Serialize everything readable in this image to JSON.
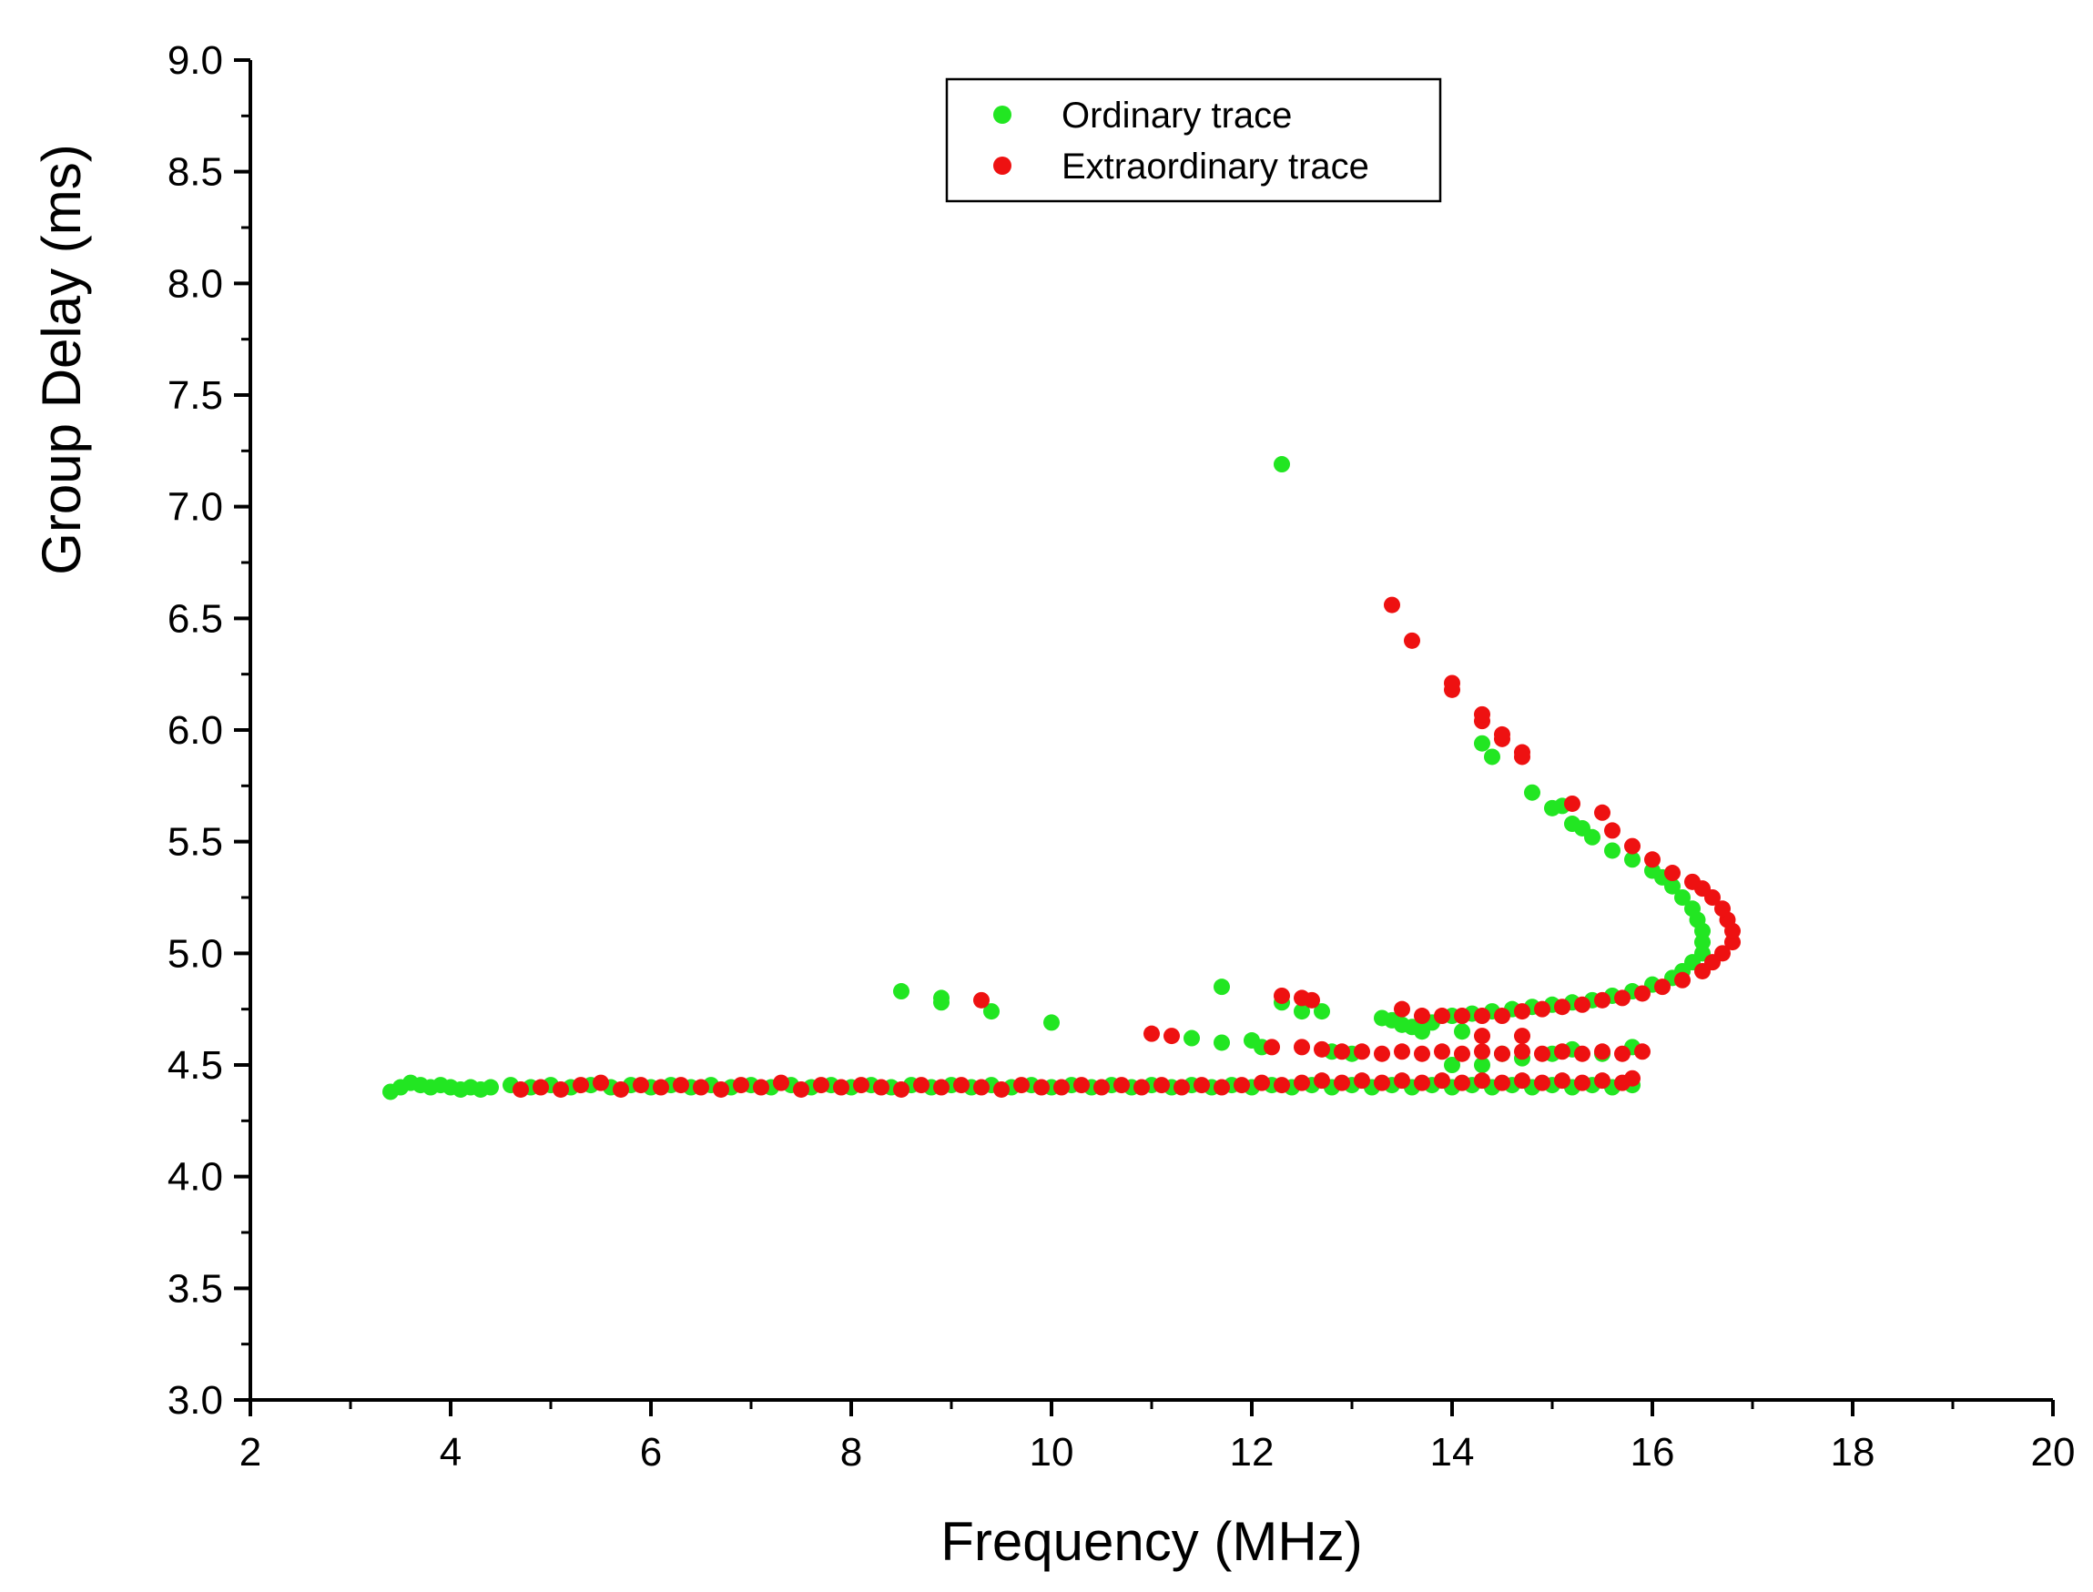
{
  "chart_data": {
    "type": "scatter",
    "title": "",
    "xlabel": "Frequency (MHz)",
    "ylabel": "Group Delay (ms)",
    "xlim": [
      2,
      20
    ],
    "ylim": [
      3.0,
      9.0
    ],
    "x_ticks": [
      2,
      4,
      6,
      8,
      10,
      12,
      14,
      16,
      18,
      20
    ],
    "x_tick_labels": [
      "2",
      "4",
      "6",
      "8",
      "10",
      "12",
      "14",
      "16",
      "18",
      "20"
    ],
    "y_ticks": [
      3.0,
      3.5,
      4.0,
      4.5,
      5.0,
      5.5,
      6.0,
      6.5,
      7.0,
      7.5,
      8.0,
      8.5,
      9.0
    ],
    "y_tick_labels": [
      "3.0",
      "3.5",
      "4.0",
      "4.5",
      "5.0",
      "5.5",
      "6.0",
      "6.5",
      "7.0",
      "7.5",
      "8.0",
      "8.5",
      "9.0"
    ],
    "grid": false,
    "legend_position": "top-center",
    "series": [
      {
        "name": "Ordinary trace",
        "color": "#22e622",
        "points": [
          [
            3.4,
            4.38
          ],
          [
            3.5,
            4.4
          ],
          [
            3.6,
            4.42
          ],
          [
            3.7,
            4.41
          ],
          [
            3.8,
            4.4
          ],
          [
            3.9,
            4.41
          ],
          [
            4.0,
            4.4
          ],
          [
            4.1,
            4.39
          ],
          [
            4.2,
            4.4
          ],
          [
            4.3,
            4.39
          ],
          [
            4.4,
            4.4
          ],
          [
            4.6,
            4.41
          ],
          [
            4.8,
            4.4
          ],
          [
            5.0,
            4.41
          ],
          [
            5.2,
            4.4
          ],
          [
            5.4,
            4.41
          ],
          [
            5.6,
            4.4
          ],
          [
            5.8,
            4.41
          ],
          [
            6.0,
            4.4
          ],
          [
            6.2,
            4.41
          ],
          [
            6.4,
            4.4
          ],
          [
            6.6,
            4.41
          ],
          [
            6.8,
            4.4
          ],
          [
            7.0,
            4.41
          ],
          [
            7.2,
            4.4
          ],
          [
            7.4,
            4.41
          ],
          [
            7.6,
            4.4
          ],
          [
            7.8,
            4.41
          ],
          [
            8.0,
            4.4
          ],
          [
            8.2,
            4.41
          ],
          [
            8.4,
            4.4
          ],
          [
            8.6,
            4.41
          ],
          [
            8.8,
            4.4
          ],
          [
            9.0,
            4.41
          ],
          [
            9.2,
            4.4
          ],
          [
            9.4,
            4.41
          ],
          [
            9.6,
            4.4
          ],
          [
            9.8,
            4.41
          ],
          [
            10.0,
            4.4
          ],
          [
            10.2,
            4.41
          ],
          [
            10.4,
            4.4
          ],
          [
            10.6,
            4.41
          ],
          [
            10.8,
            4.4
          ],
          [
            11.0,
            4.41
          ],
          [
            11.2,
            4.4
          ],
          [
            11.4,
            4.41
          ],
          [
            11.6,
            4.4
          ],
          [
            11.8,
            4.41
          ],
          [
            12.0,
            4.4
          ],
          [
            12.2,
            4.41
          ],
          [
            12.4,
            4.4
          ],
          [
            12.6,
            4.41
          ],
          [
            12.8,
            4.4
          ],
          [
            13.0,
            4.41
          ],
          [
            13.2,
            4.4
          ],
          [
            13.4,
            4.41
          ],
          [
            13.6,
            4.4
          ],
          [
            13.8,
            4.41
          ],
          [
            14.0,
            4.4
          ],
          [
            14.2,
            4.41
          ],
          [
            14.4,
            4.4
          ],
          [
            14.6,
            4.41
          ],
          [
            14.8,
            4.4
          ],
          [
            15.0,
            4.41
          ],
          [
            15.2,
            4.4
          ],
          [
            15.4,
            4.41
          ],
          [
            15.6,
            4.4
          ],
          [
            15.8,
            4.41
          ],
          [
            8.5,
            4.83
          ],
          [
            8.9,
            4.8
          ],
          [
            8.9,
            4.78
          ],
          [
            9.4,
            4.74
          ],
          [
            10.0,
            4.69
          ],
          [
            11.4,
            4.62
          ],
          [
            11.7,
            4.85
          ],
          [
            11.7,
            4.6
          ],
          [
            12.0,
            4.61
          ],
          [
            12.1,
            4.58
          ],
          [
            12.3,
            4.78
          ],
          [
            12.5,
            4.74
          ],
          [
            12.7,
            4.74
          ],
          [
            12.8,
            4.56
          ],
          [
            13.0,
            4.55
          ],
          [
            13.3,
            4.71
          ],
          [
            13.4,
            4.7
          ],
          [
            13.5,
            4.68
          ],
          [
            13.6,
            4.67
          ],
          [
            13.7,
            4.65
          ],
          [
            13.8,
            4.69
          ],
          [
            14.0,
            4.5
          ],
          [
            14.1,
            4.65
          ],
          [
            14.3,
            4.5
          ],
          [
            14.5,
            4.55
          ],
          [
            14.7,
            4.53
          ],
          [
            15.0,
            4.55
          ],
          [
            15.2,
            4.57
          ],
          [
            15.5,
            4.55
          ],
          [
            15.8,
            4.58
          ],
          [
            14.0,
            4.72
          ],
          [
            14.2,
            4.73
          ],
          [
            14.4,
            4.74
          ],
          [
            14.6,
            4.75
          ],
          [
            14.8,
            4.76
          ],
          [
            15.0,
            4.77
          ],
          [
            15.2,
            4.78
          ],
          [
            15.4,
            4.79
          ],
          [
            15.6,
            4.81
          ],
          [
            15.8,
            4.83
          ],
          [
            16.0,
            4.86
          ],
          [
            16.2,
            4.89
          ],
          [
            16.3,
            4.92
          ],
          [
            16.4,
            4.96
          ],
          [
            16.5,
            5.0
          ],
          [
            16.5,
            5.05
          ],
          [
            16.5,
            5.1
          ],
          [
            16.45,
            5.15
          ],
          [
            16.4,
            5.2
          ],
          [
            16.3,
            5.25
          ],
          [
            16.2,
            5.3
          ],
          [
            16.1,
            5.34
          ],
          [
            16.0,
            5.37
          ],
          [
            15.8,
            5.42
          ],
          [
            15.6,
            5.46
          ],
          [
            15.4,
            5.52
          ],
          [
            15.3,
            5.56
          ],
          [
            15.2,
            5.58
          ],
          [
            15.1,
            5.66
          ],
          [
            15.0,
            5.65
          ],
          [
            14.8,
            5.72
          ],
          [
            14.4,
            5.88
          ],
          [
            14.3,
            5.94
          ],
          [
            12.3,
            7.19
          ]
        ]
      },
      {
        "name": "Extraordinary trace",
        "color": "#ee1111",
        "points": [
          [
            4.7,
            4.39
          ],
          [
            4.9,
            4.4
          ],
          [
            5.1,
            4.39
          ],
          [
            5.3,
            4.41
          ],
          [
            5.5,
            4.42
          ],
          [
            5.7,
            4.39
          ],
          [
            5.9,
            4.41
          ],
          [
            6.1,
            4.4
          ],
          [
            6.3,
            4.41
          ],
          [
            6.5,
            4.4
          ],
          [
            6.7,
            4.39
          ],
          [
            6.9,
            4.41
          ],
          [
            7.1,
            4.4
          ],
          [
            7.3,
            4.42
          ],
          [
            7.5,
            4.39
          ],
          [
            7.7,
            4.41
          ],
          [
            7.9,
            4.4
          ],
          [
            8.1,
            4.41
          ],
          [
            8.3,
            4.4
          ],
          [
            8.5,
            4.39
          ],
          [
            8.7,
            4.41
          ],
          [
            8.9,
            4.4
          ],
          [
            9.1,
            4.41
          ],
          [
            9.3,
            4.4
          ],
          [
            9.5,
            4.39
          ],
          [
            9.7,
            4.41
          ],
          [
            9.9,
            4.4
          ],
          [
            10.1,
            4.4
          ],
          [
            10.3,
            4.41
          ],
          [
            10.5,
            4.4
          ],
          [
            10.7,
            4.41
          ],
          [
            10.9,
            4.4
          ],
          [
            11.1,
            4.41
          ],
          [
            11.3,
            4.4
          ],
          [
            11.5,
            4.41
          ],
          [
            11.7,
            4.4
          ],
          [
            11.9,
            4.41
          ],
          [
            12.1,
            4.42
          ],
          [
            12.3,
            4.41
          ],
          [
            12.5,
            4.42
          ],
          [
            12.7,
            4.43
          ],
          [
            12.9,
            4.42
          ],
          [
            13.1,
            4.43
          ],
          [
            13.3,
            4.42
          ],
          [
            13.5,
            4.43
          ],
          [
            13.7,
            4.42
          ],
          [
            13.9,
            4.43
          ],
          [
            14.1,
            4.42
          ],
          [
            14.3,
            4.43
          ],
          [
            14.5,
            4.42
          ],
          [
            14.7,
            4.43
          ],
          [
            14.9,
            4.42
          ],
          [
            15.1,
            4.43
          ],
          [
            15.3,
            4.42
          ],
          [
            15.5,
            4.43
          ],
          [
            15.7,
            4.42
          ],
          [
            15.8,
            4.44
          ],
          [
            12.5,
            4.58
          ],
          [
            12.7,
            4.57
          ],
          [
            12.9,
            4.56
          ],
          [
            13.1,
            4.56
          ],
          [
            13.3,
            4.55
          ],
          [
            13.5,
            4.56
          ],
          [
            13.7,
            4.55
          ],
          [
            13.9,
            4.56
          ],
          [
            14.1,
            4.55
          ],
          [
            14.3,
            4.56
          ],
          [
            14.5,
            4.55
          ],
          [
            14.7,
            4.56
          ],
          [
            14.9,
            4.55
          ],
          [
            15.1,
            4.56
          ],
          [
            15.3,
            4.55
          ],
          [
            15.5,
            4.56
          ],
          [
            15.7,
            4.55
          ],
          [
            15.9,
            4.56
          ],
          [
            9.3,
            4.79
          ],
          [
            11.0,
            4.64
          ],
          [
            11.2,
            4.63
          ],
          [
            12.2,
            4.58
          ],
          [
            12.3,
            4.81
          ],
          [
            12.5,
            4.8
          ],
          [
            12.6,
            4.79
          ],
          [
            14.3,
            4.63
          ],
          [
            14.7,
            4.63
          ],
          [
            13.5,
            4.75
          ],
          [
            13.7,
            4.72
          ],
          [
            13.9,
            4.72
          ],
          [
            14.1,
            4.72
          ],
          [
            14.3,
            4.72
          ],
          [
            14.5,
            4.72
          ],
          [
            14.7,
            4.74
          ],
          [
            14.9,
            4.75
          ],
          [
            15.1,
            4.76
          ],
          [
            15.3,
            4.77
          ],
          [
            15.5,
            4.79
          ],
          [
            15.7,
            4.8
          ],
          [
            15.9,
            4.82
          ],
          [
            16.1,
            4.85
          ],
          [
            16.3,
            4.88
          ],
          [
            16.5,
            4.92
          ],
          [
            16.6,
            4.96
          ],
          [
            16.7,
            5.0
          ],
          [
            16.8,
            5.05
          ],
          [
            16.8,
            5.1
          ],
          [
            16.75,
            5.15
          ],
          [
            16.7,
            5.2
          ],
          [
            16.6,
            5.25
          ],
          [
            16.5,
            5.29
          ],
          [
            16.4,
            5.32
          ],
          [
            16.2,
            5.36
          ],
          [
            16.0,
            5.42
          ],
          [
            15.8,
            5.48
          ],
          [
            15.6,
            5.55
          ],
          [
            15.5,
            5.63
          ],
          [
            15.2,
            5.67
          ],
          [
            14.7,
            5.9
          ],
          [
            14.7,
            5.88
          ],
          [
            14.5,
            5.96
          ],
          [
            14.5,
            5.98
          ],
          [
            14.3,
            6.04
          ],
          [
            14.3,
            6.07
          ],
          [
            14.0,
            6.18
          ],
          [
            14.0,
            6.21
          ],
          [
            13.6,
            6.4
          ],
          [
            13.4,
            6.56
          ]
        ]
      }
    ]
  }
}
